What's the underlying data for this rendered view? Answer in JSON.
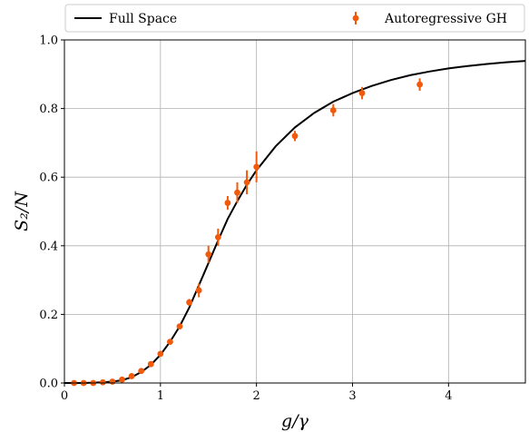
{
  "chart_data": {
    "type": "line",
    "title": "",
    "xlabel": "g/γ",
    "ylabel": "S₂/N",
    "xlim": [
      0,
      4.8
    ],
    "ylim": [
      0,
      1.0
    ],
    "xticks": [
      0,
      1,
      2,
      3,
      4
    ],
    "yticks": [
      0.0,
      0.2,
      0.4,
      0.6,
      0.8,
      1.0
    ],
    "xtick_labels": [
      "0",
      "1",
      "2",
      "3",
      "4"
    ],
    "ytick_labels": [
      "0.0",
      "0.2",
      "0.4",
      "0.6",
      "0.8",
      "1.0"
    ],
    "grid": true,
    "legend_placement": "top, outside plot, two columns",
    "series": [
      {
        "name": "Full Space",
        "kind": "line",
        "color": "#000000",
        "x": [
          0,
          0.2,
          0.4,
          0.5,
          0.6,
          0.7,
          0.8,
          0.9,
          1.0,
          1.1,
          1.2,
          1.3,
          1.4,
          1.5,
          1.6,
          1.7,
          1.8,
          1.9,
          2.0,
          2.2,
          2.4,
          2.6,
          2.8,
          3.0,
          3.2,
          3.4,
          3.6,
          3.8,
          4.0,
          4.2,
          4.4,
          4.6,
          4.8
        ],
        "y": [
          0.0,
          0.0,
          0.002,
          0.004,
          0.008,
          0.017,
          0.032,
          0.053,
          0.082,
          0.12,
          0.165,
          0.22,
          0.285,
          0.35,
          0.415,
          0.478,
          0.53,
          0.578,
          0.62,
          0.69,
          0.745,
          0.787,
          0.82,
          0.845,
          0.866,
          0.883,
          0.897,
          0.908,
          0.917,
          0.924,
          0.93,
          0.935,
          0.939
        ]
      },
      {
        "name": "Autoregressive GH",
        "kind": "errorbar",
        "color": "#f05a0a",
        "x": [
          0.1,
          0.2,
          0.3,
          0.4,
          0.5,
          0.6,
          0.7,
          0.8,
          0.9,
          1.0,
          1.1,
          1.2,
          1.3,
          1.4,
          1.5,
          1.6,
          1.7,
          1.8,
          1.9,
          2.0,
          2.4,
          2.8,
          3.1,
          3.7
        ],
        "y": [
          0.0,
          0.0,
          0.0,
          0.002,
          0.004,
          0.01,
          0.02,
          0.035,
          0.055,
          0.085,
          0.12,
          0.165,
          0.235,
          0.27,
          0.375,
          0.425,
          0.525,
          0.555,
          0.585,
          0.63,
          0.72,
          0.795,
          0.845,
          0.87
        ],
        "yerr": [
          0.0,
          0.0,
          0.0,
          0.0,
          0.0,
          0.0,
          0.005,
          0.005,
          0.006,
          0.007,
          0.007,
          0.008,
          0.01,
          0.02,
          0.025,
          0.025,
          0.02,
          0.03,
          0.035,
          0.045,
          0.015,
          0.018,
          0.018,
          0.018
        ]
      }
    ]
  }
}
